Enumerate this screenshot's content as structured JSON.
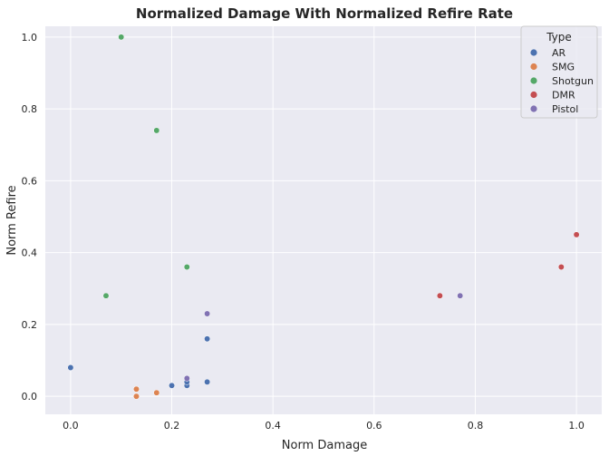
{
  "chart_data": {
    "type": "scatter",
    "title": "Normalized Damage With Normalized Refire Rate",
    "xlabel": "Norm Damage",
    "ylabel": "Norm Refire",
    "xlim": [
      -0.05,
      1.05
    ],
    "ylim": [
      -0.05,
      1.03
    ],
    "xticks": [
      "0.0",
      "0.2",
      "0.4",
      "0.6",
      "0.8",
      "1.0"
    ],
    "yticks": [
      "0.0",
      "0.2",
      "0.4",
      "0.6",
      "0.8",
      "1.0"
    ],
    "grid": true,
    "background": "#eaeaf2",
    "legend": {
      "title": "Type",
      "placement": "top-right",
      "entries": [
        "AR",
        "SMG",
        "Shotgun",
        "DMR",
        "Pistol"
      ]
    },
    "series": [
      {
        "name": "AR",
        "color": "#4c72b0",
        "points": [
          [
            0.0,
            0.08
          ],
          [
            0.2,
            0.03
          ],
          [
            0.23,
            0.03
          ],
          [
            0.23,
            0.04
          ],
          [
            0.27,
            0.04
          ],
          [
            0.27,
            0.16
          ]
        ]
      },
      {
        "name": "SMG",
        "color": "#dd8452",
        "points": [
          [
            0.13,
            0.02
          ],
          [
            0.13,
            0.0
          ],
          [
            0.17,
            0.01
          ]
        ]
      },
      {
        "name": "Shotgun",
        "color": "#55a868",
        "points": [
          [
            0.1,
            1.0
          ],
          [
            0.17,
            0.74
          ],
          [
            0.23,
            0.36
          ],
          [
            0.07,
            0.28
          ]
        ]
      },
      {
        "name": "DMR",
        "color": "#c44e52",
        "points": [
          [
            0.73,
            0.28
          ],
          [
            0.97,
            0.36
          ],
          [
            1.0,
            0.45
          ]
        ]
      },
      {
        "name": "Pistol",
        "color": "#8172b3",
        "points": [
          [
            0.77,
            0.28
          ],
          [
            0.27,
            0.23
          ],
          [
            0.23,
            0.05
          ]
        ]
      }
    ]
  }
}
